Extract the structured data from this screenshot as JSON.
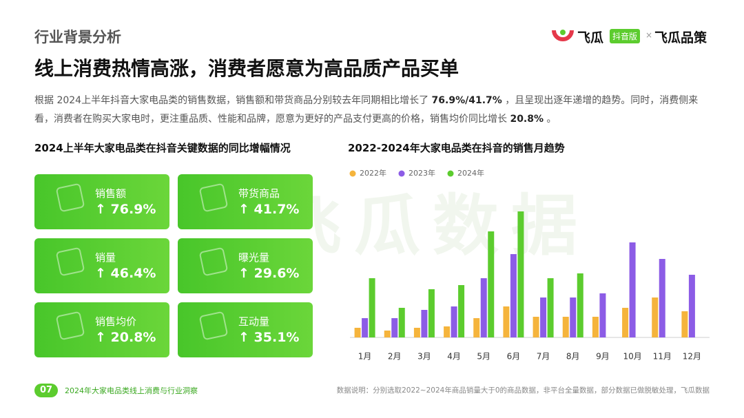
{
  "header": {
    "section": "行业背景分析",
    "title": "线上消费热情高涨，消费者愿意为高品质产品买单"
  },
  "logo": {
    "brand": "飞瓜",
    "badge": "抖音版",
    "cross": "×",
    "partner": "飞瓜品策"
  },
  "paragraph": [
    "根据 2024上半年抖音大家电品类的销售数据，销售额和带货商品分别较去年同期相比增长了 ",
    "76.9%/41.7%",
    " ，且呈现出逐年递增的趋势。同时，消费侧来看，消费者在购买大家电时，更注重品质、性能和品牌，愿意为更好的产品支付更高的价格，销售均价同比增长 ",
    "20.8%",
    " 。"
  ],
  "cards_title": "2024上半年大家电品类在抖音关键数据的同比增幅情况",
  "cards": [
    {
      "label": "销售额",
      "value": "↑ 76.9%"
    },
    {
      "label": "带货商品",
      "value": "↑ 41.7%"
    },
    {
      "label": "销量",
      "value": "↑ 46.4%"
    },
    {
      "label": "曝光量",
      "value": "↑ 29.6%"
    },
    {
      "label": "销售均价",
      "value": "↑ 20.8%"
    },
    {
      "label": "互动量",
      "value": "↑ 35.1%"
    }
  ],
  "watermark": "飞瓜数据",
  "chart_data": {
    "type": "bar",
    "title": "2022-2024年大家电品类在抖音的销售月趋势",
    "categories": [
      "1月",
      "2月",
      "3月",
      "4月",
      "5月",
      "6月",
      "7月",
      "8月",
      "9月",
      "10月",
      "11月",
      "12月"
    ],
    "series": [
      {
        "name": "2022年",
        "color": "#f5b43c",
        "values": [
          14,
          10,
          14,
          16,
          28,
          45,
          30,
          30,
          30,
          43,
          58,
          38
        ]
      },
      {
        "name": "2023年",
        "color": "#8c5ce6",
        "values": [
          28,
          28,
          40,
          45,
          86,
          121,
          58,
          58,
          64,
          138,
          114,
          91
        ]
      },
      {
        "name": "2024年",
        "color": "#5ccc2e",
        "values": [
          86,
          43,
          70,
          76,
          154,
          183,
          86,
          93,
          null,
          null,
          null,
          null
        ]
      }
    ],
    "ylim": [
      0,
      200
    ]
  },
  "footer": {
    "page": "07",
    "report": "2024年大家电品类线上消费与行业洞察",
    "note": "数据说明：分别选取2022~2024年商品销量大于0的商品数据，非平台全量数据，部分数据已做脱敏处理，飞瓜数据"
  }
}
